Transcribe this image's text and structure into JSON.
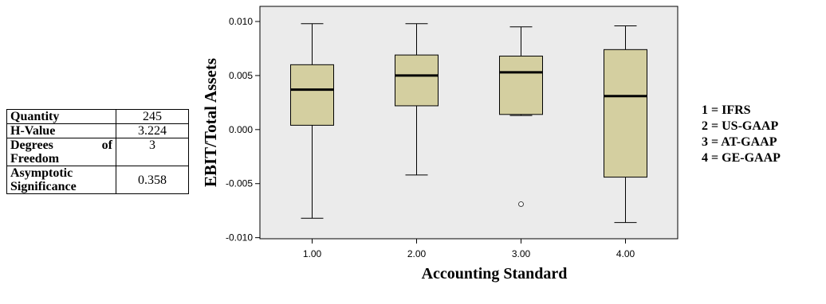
{
  "stats_table": [
    {
      "label": "Quantity",
      "value": "245"
    },
    {
      "label": "H-Value",
      "value": "3.224"
    },
    {
      "label": "Degrees of Freedom",
      "value": "3"
    },
    {
      "label": "Asymptotic Significance",
      "value": "0.358"
    }
  ],
  "legend": [
    "1 = IFRS",
    "2 = US-GAAP",
    "3 = AT-GAAP",
    "4 = GE-GAAP"
  ],
  "chart_data": {
    "type": "boxplot",
    "xlabel": "Accounting Standard",
    "ylabel": "EBIT/Total Assets",
    "ylim": [
      -0.0101,
      0.0114
    ],
    "yticks": [
      -0.01,
      -0.005,
      0.0,
      0.005,
      0.01
    ],
    "ytick_labels": [
      "-0.010",
      "-0.005",
      "0.000",
      "0.005",
      "0.010"
    ],
    "categories": [
      "1.00",
      "2.00",
      "3.00",
      "4.00"
    ],
    "boxes": [
      {
        "category": "1.00",
        "whisker_low": -0.0082,
        "q1": 0.0004,
        "median": 0.0037,
        "q3": 0.006,
        "whisker_high": 0.0098,
        "outliers": []
      },
      {
        "category": "2.00",
        "whisker_low": -0.0042,
        "q1": 0.0022,
        "median": 0.005,
        "q3": 0.0069,
        "whisker_high": 0.0098,
        "outliers": []
      },
      {
        "category": "3.00",
        "whisker_low": 0.0013,
        "q1": 0.0014,
        "median": 0.0053,
        "q3": 0.0068,
        "whisker_high": 0.0095,
        "outliers": [
          -0.0069
        ]
      },
      {
        "category": "4.00",
        "whisker_low": -0.0086,
        "q1": -0.0044,
        "median": 0.0031,
        "q3": 0.0074,
        "whisker_high": 0.0096,
        "outliers": []
      }
    ],
    "colors": {
      "box_fill": "#d4cfa0",
      "plot_bg": "#ebebeb",
      "stroke": "#000000"
    },
    "grid": false
  }
}
